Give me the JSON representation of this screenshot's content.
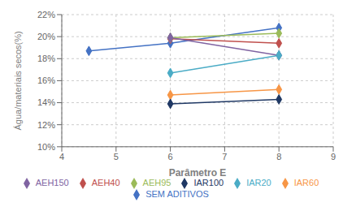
{
  "chart_data": {
    "type": "line",
    "xlabel": "Parâmetro  E",
    "ylabel": "Água/materiais secos(%)",
    "xlim": [
      4,
      9
    ],
    "xticks": [
      4,
      5,
      6,
      7,
      8,
      9
    ],
    "ylim": [
      10,
      22
    ],
    "yticks": [
      {
        "value": 10,
        "label": "10%"
      },
      {
        "value": 12,
        "label": "12%"
      },
      {
        "value": 14,
        "label": "14%"
      },
      {
        "value": 16,
        "label": "16%"
      },
      {
        "value": 18,
        "label": "18%"
      },
      {
        "value": 20,
        "label": "20%"
      },
      {
        "value": 22,
        "label": "22%"
      }
    ],
    "grid": true,
    "legend": "bottom",
    "series": [
      {
        "name": "SEM ADITIVOS",
        "color": "#4472C4",
        "marker": "diamond",
        "x": [
          4.5,
          6,
          8
        ],
        "values": [
          18.7,
          19.4,
          20.8
        ]
      },
      {
        "name": "AEH40",
        "color": "#C0504D",
        "marker": "diamond",
        "x": [
          6,
          8
        ],
        "values": [
          19.8,
          19.4
        ]
      },
      {
        "name": "AEH95",
        "color": "#9BBB59",
        "marker": "diamond",
        "x": [
          6,
          8
        ],
        "values": [
          19.9,
          20.3
        ]
      },
      {
        "name": "AEH150",
        "color": "#8064A2",
        "marker": "diamond",
        "x": [
          6,
          8
        ],
        "values": [
          19.9,
          18.3
        ]
      },
      {
        "name": "IAR20",
        "color": "#4BACC6",
        "marker": "diamond",
        "x": [
          6,
          8
        ],
        "values": [
          16.7,
          18.3
        ]
      },
      {
        "name": "IAR60",
        "color": "#F79646",
        "marker": "diamond",
        "x": [
          6,
          8
        ],
        "values": [
          14.7,
          15.2
        ]
      },
      {
        "name": "IAR100",
        "color": "#1F3864",
        "marker": "diamond",
        "x": [
          6,
          8
        ],
        "values": [
          13.9,
          14.3
        ]
      }
    ]
  }
}
